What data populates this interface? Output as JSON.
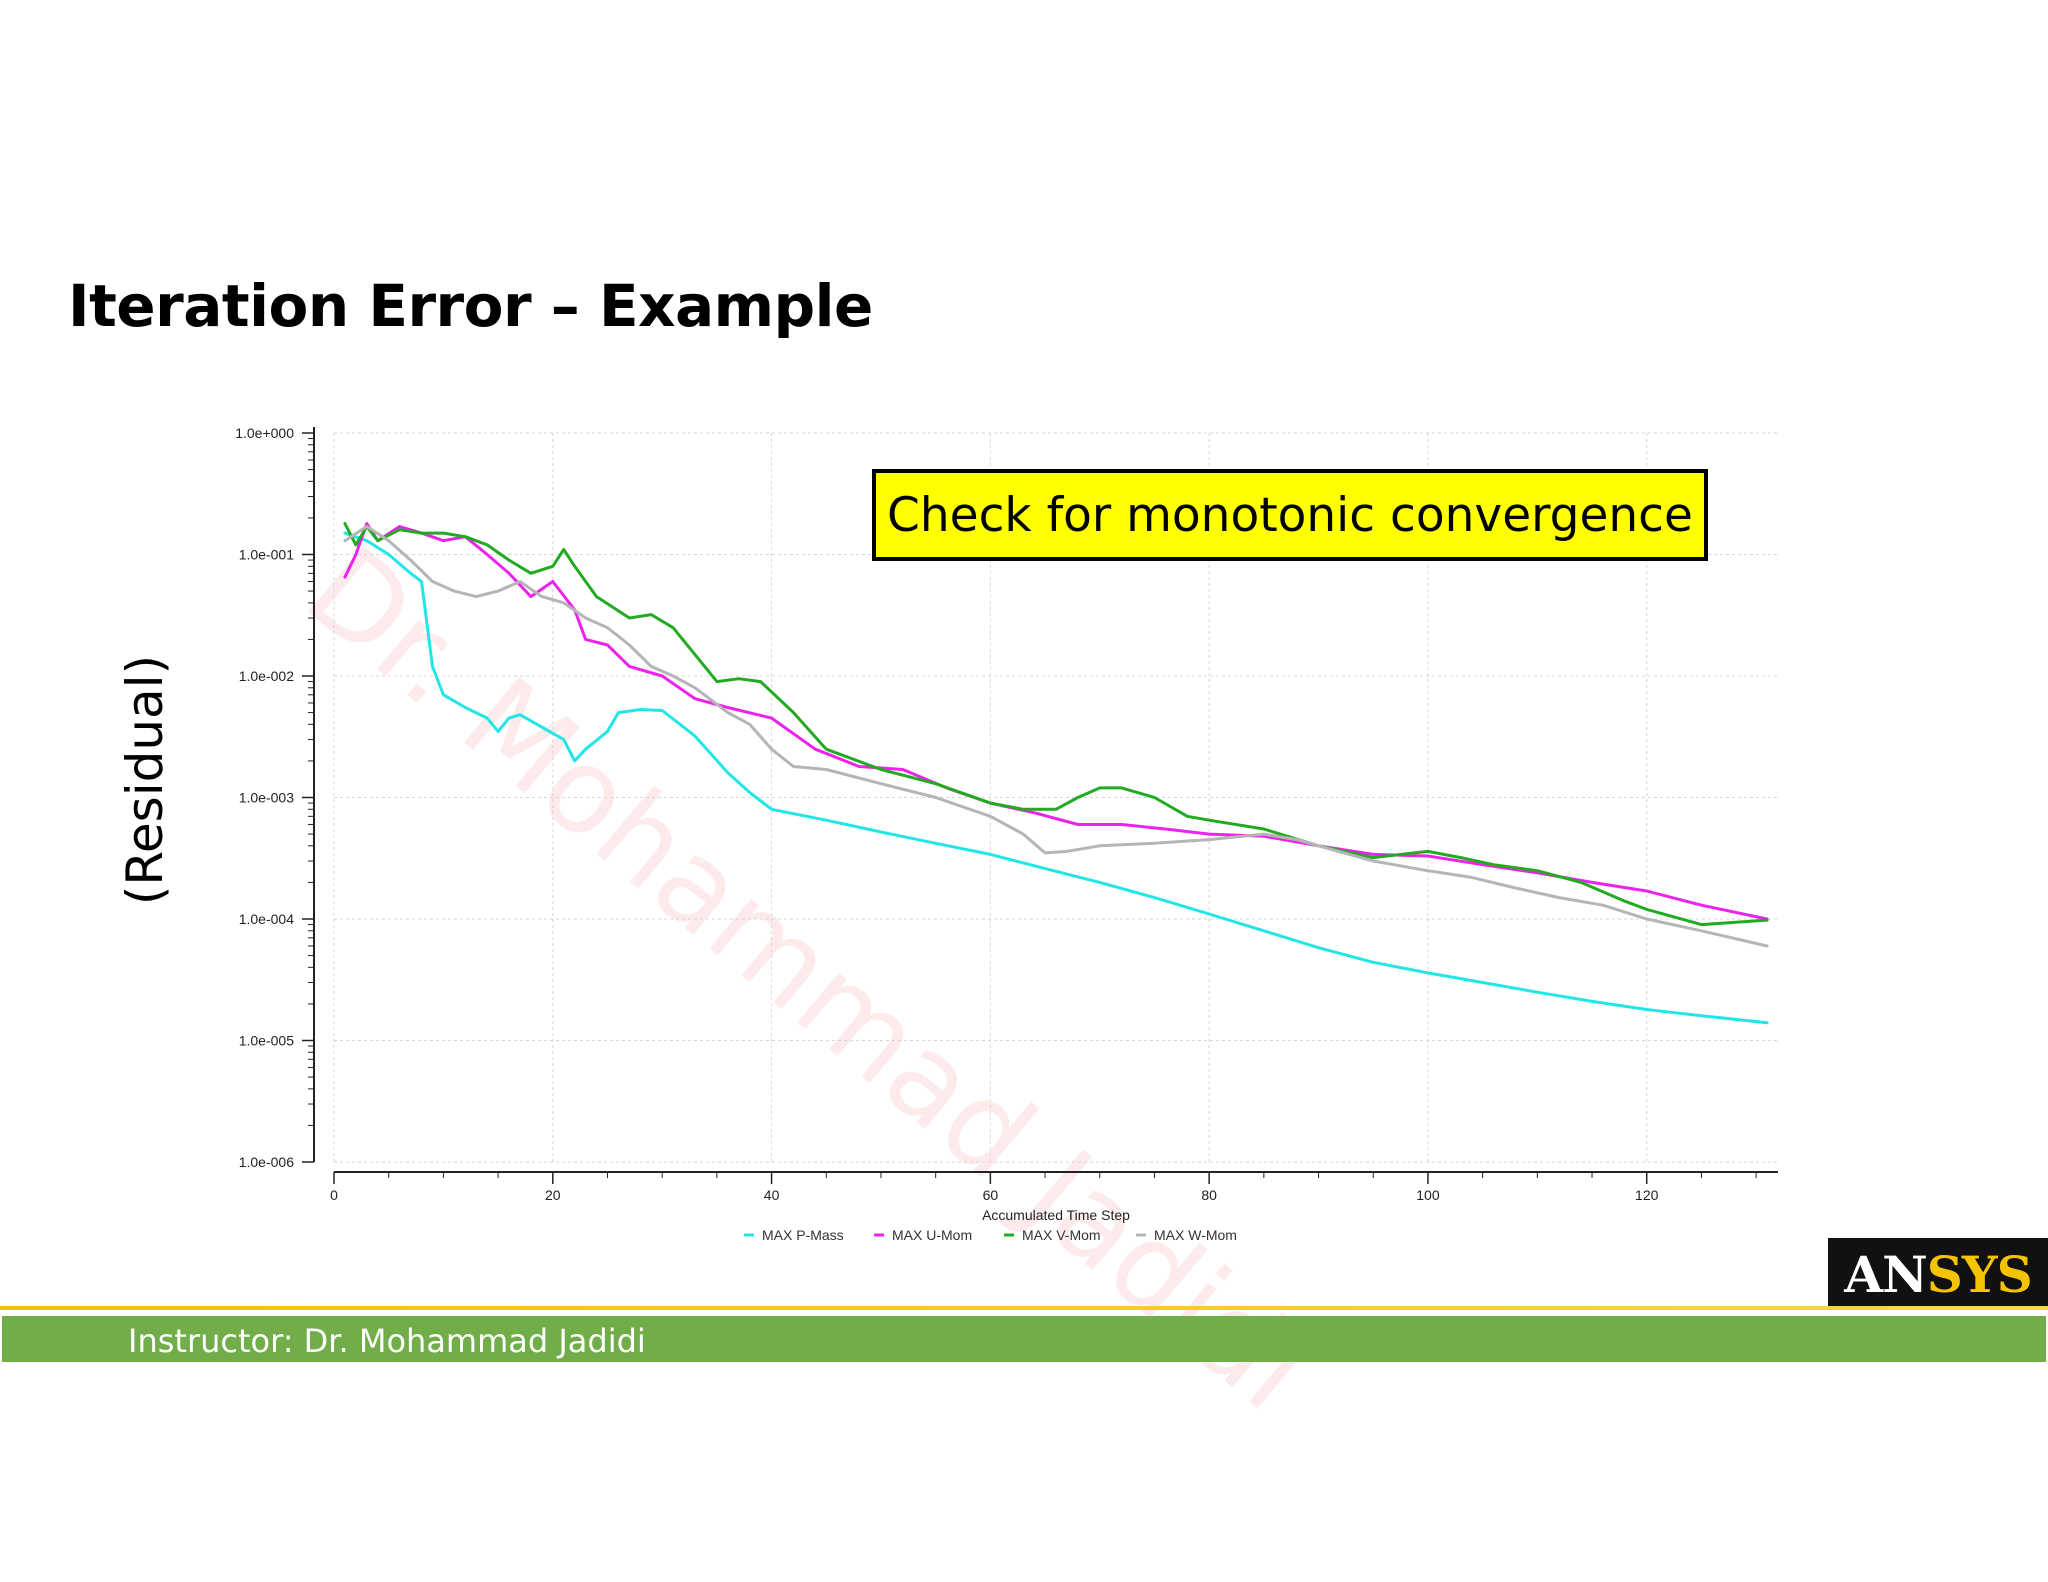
{
  "slide": {
    "title": "Iteration Error – Example",
    "callout": "Check for monotonic convergence",
    "footer": "Instructor: Dr. Mohammad Jadidi",
    "watermark": "Dr. Mohammad Jadidi",
    "logo": {
      "prefix": "AN",
      "suffix": "SYS"
    },
    "colors": {
      "footer_bar": "#71ad48",
      "footer_line": "#f2c200",
      "callout_bg": "#ffff00"
    }
  },
  "chart_data": {
    "type": "line",
    "ylabel": "(Residual)",
    "xlabel": "Accumulated Time Step",
    "xlim": [
      0,
      132
    ],
    "ylim": [
      1e-06,
      1
    ],
    "yscale": "log",
    "x_ticks": [
      0,
      20,
      40,
      60,
      80,
      100,
      120
    ],
    "y_ticks": [
      "1.0e+000",
      "1.0e-001",
      "1.0e-002",
      "1.0e-003",
      "1.0e-004",
      "1.0e-005",
      "1.0e-006"
    ],
    "grid": true,
    "legend_position": "bottom",
    "series": [
      {
        "name": "MAX P-Mass",
        "color": "#22e5e5",
        "x": [
          1,
          3,
          5,
          7,
          8,
          9,
          10,
          12,
          14,
          15,
          16,
          17,
          19,
          21,
          22,
          23,
          25,
          26,
          28,
          30,
          33,
          36,
          38,
          40,
          45,
          50,
          55,
          60,
          65,
          70,
          75,
          80,
          85,
          90,
          95,
          100,
          105,
          110,
          115,
          120,
          125,
          131
        ],
        "y": [
          0.15,
          0.13,
          0.1,
          0.07,
          0.06,
          0.012,
          0.007,
          0.0055,
          0.0045,
          0.0035,
          0.0045,
          0.0048,
          0.0038,
          0.003,
          0.002,
          0.0025,
          0.0035,
          0.005,
          0.0053,
          0.0052,
          0.0032,
          0.0016,
          0.0011,
          0.0008,
          0.00065,
          0.00052,
          0.00042,
          0.00034,
          0.00026,
          0.0002,
          0.00015,
          0.00011,
          8e-05,
          5.8e-05,
          4.4e-05,
          3.6e-05,
          3e-05,
          2.5e-05,
          2.1e-05,
          1.8e-05,
          1.6e-05,
          1.4e-05
        ]
      },
      {
        "name": "MAX U-Mom",
        "color": "#ee22ee",
        "x": [
          1,
          2,
          3,
          4,
          6,
          8,
          10,
          12,
          14,
          16,
          18,
          20,
          22,
          23,
          25,
          27,
          30,
          33,
          36,
          40,
          44,
          48,
          52,
          56,
          60,
          64,
          68,
          72,
          76,
          80,
          85,
          90,
          95,
          100,
          105,
          110,
          115,
          120,
          125,
          131
        ],
        "y": [
          0.065,
          0.1,
          0.18,
          0.13,
          0.17,
          0.15,
          0.13,
          0.14,
          0.1,
          0.07,
          0.045,
          0.06,
          0.035,
          0.02,
          0.018,
          0.012,
          0.01,
          0.0065,
          0.0055,
          0.0045,
          0.0025,
          0.0018,
          0.0017,
          0.0012,
          0.0009,
          0.00075,
          0.0006,
          0.0006,
          0.00055,
          0.0005,
          0.00048,
          0.0004,
          0.00034,
          0.00033,
          0.00028,
          0.00024,
          0.0002,
          0.00017,
          0.00013,
          0.0001
        ]
      },
      {
        "name": "MAX V-Mom",
        "color": "#22aa22",
        "x": [
          1,
          2,
          3,
          4,
          6,
          8,
          10,
          12,
          14,
          16,
          18,
          20,
          21,
          22,
          24,
          27,
          29,
          31,
          33,
          35,
          37,
          39,
          42,
          45,
          50,
          55,
          60,
          63,
          66,
          68,
          70,
          72,
          75,
          78,
          80,
          85,
          90,
          95,
          100,
          103,
          106,
          110,
          114,
          118,
          120,
          125,
          131
        ],
        "y": [
          0.18,
          0.12,
          0.17,
          0.13,
          0.16,
          0.15,
          0.15,
          0.14,
          0.12,
          0.09,
          0.07,
          0.08,
          0.11,
          0.08,
          0.045,
          0.03,
          0.032,
          0.025,
          0.015,
          0.009,
          0.0095,
          0.009,
          0.005,
          0.0025,
          0.0017,
          0.0013,
          0.0009,
          0.0008,
          0.0008,
          0.001,
          0.0012,
          0.0012,
          0.001,
          0.0007,
          0.00065,
          0.00055,
          0.0004,
          0.00032,
          0.00036,
          0.00032,
          0.00028,
          0.00025,
          0.0002,
          0.00014,
          0.00012,
          9e-05,
          9.8e-05
        ]
      },
      {
        "name": "MAX W-Mom",
        "color": "#b5b5b5",
        "x": [
          1,
          3,
          5,
          7,
          9,
          11,
          13,
          15,
          17,
          19,
          21,
          23,
          25,
          27,
          29,
          31,
          33,
          36,
          38,
          40,
          42,
          45,
          50,
          55,
          60,
          63,
          65,
          67,
          70,
          75,
          80,
          85,
          88,
          90,
          95,
          100,
          104,
          108,
          112,
          116,
          120,
          125,
          131
        ],
        "y": [
          0.13,
          0.17,
          0.13,
          0.09,
          0.06,
          0.05,
          0.045,
          0.05,
          0.06,
          0.045,
          0.04,
          0.03,
          0.025,
          0.018,
          0.012,
          0.01,
          0.008,
          0.005,
          0.004,
          0.0025,
          0.0018,
          0.0017,
          0.0013,
          0.001,
          0.0007,
          0.0005,
          0.00035,
          0.00036,
          0.0004,
          0.00042,
          0.00045,
          0.0005,
          0.00045,
          0.0004,
          0.0003,
          0.00025,
          0.00022,
          0.00018,
          0.00015,
          0.00013,
          0.0001,
          8e-05,
          6e-05
        ]
      }
    ]
  }
}
